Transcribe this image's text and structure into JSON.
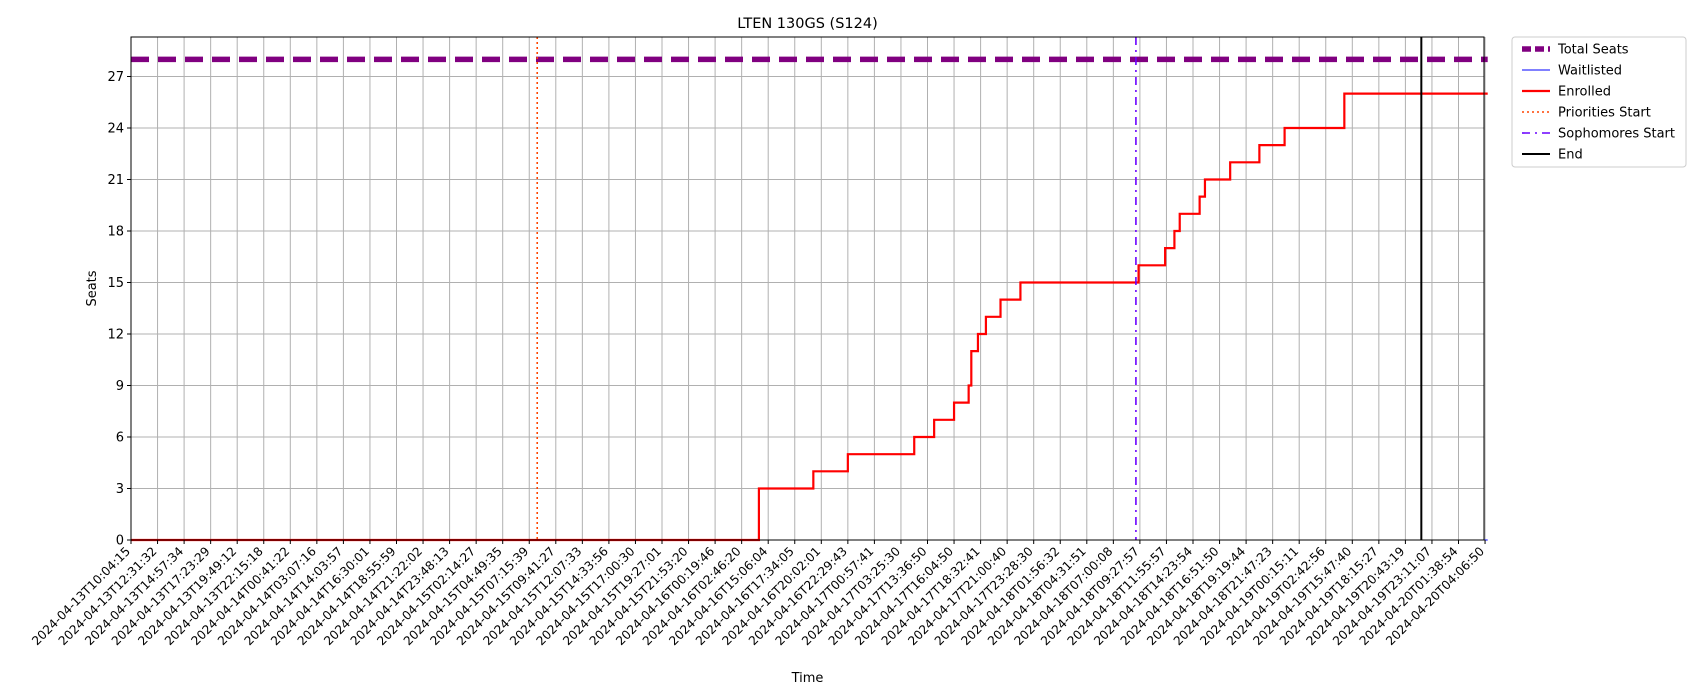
{
  "chart_data": {
    "type": "line",
    "title": "LTEN 130GS (S124)",
    "xlabel": "Time",
    "ylabel": "Seats",
    "x_ticks": [
      "2024-04-13T10:04:15",
      "2024-04-13T12:31:32",
      "2024-04-13T14:57:34",
      "2024-04-13T17:23:29",
      "2024-04-13T19:49:12",
      "2024-04-13T22:15:18",
      "2024-04-14T00:41:22",
      "2024-04-14T03:07:16",
      "2024-04-14T14:03:57",
      "2024-04-14T16:30:01",
      "2024-04-14T18:55:59",
      "2024-04-14T21:22:02",
      "2024-04-14T23:48:13",
      "2024-04-15T02:14:27",
      "2024-04-15T04:49:35",
      "2024-04-15T07:15:39",
      "2024-04-15T09:41:27",
      "2024-04-15T12:07:33",
      "2024-04-15T14:33:56",
      "2024-04-15T17:00:30",
      "2024-04-15T19:27:01",
      "2024-04-15T21:53:20",
      "2024-04-16T00:19:46",
      "2024-04-16T02:46:20",
      "2024-04-16T15:06:04",
      "2024-04-16T17:34:05",
      "2024-04-16T20:02:01",
      "2024-04-16T22:29:43",
      "2024-04-17T00:57:41",
      "2024-04-17T03:25:30",
      "2024-04-17T13:36:50",
      "2024-04-17T16:04:50",
      "2024-04-17T18:32:41",
      "2024-04-17T21:00:40",
      "2024-04-17T23:28:30",
      "2024-04-18T01:56:32",
      "2024-04-18T04:31:51",
      "2024-04-18T07:00:08",
      "2024-04-18T09:27:57",
      "2024-04-18T11:55:57",
      "2024-04-18T14:23:54",
      "2024-04-18T16:51:50",
      "2024-04-18T19:19:44",
      "2024-04-18T21:47:23",
      "2024-04-19T00:15:11",
      "2024-04-19T02:42:56",
      "2024-04-19T15:47:40",
      "2024-04-19T18:15:27",
      "2024-04-19T20:43:19",
      "2024-04-19T23:11:07",
      "2024-04-20T01:38:54",
      "2024-04-20T04:06:50"
    ],
    "x_range_index": [
      0,
      51.1
    ],
    "ylim": [
      0,
      29.3
    ],
    "y_ticks": [
      0,
      3,
      6,
      9,
      12,
      15,
      18,
      21,
      24,
      27
    ],
    "grid": true,
    "legend_position": "outside-right",
    "series": [
      {
        "name": "Total Seats",
        "style": "dashed-thick",
        "color": "#800080",
        "x_index": [
          0,
          51.1
        ],
        "values": [
          28,
          28
        ]
      },
      {
        "name": "Waitlisted",
        "style": "solid-thin",
        "color": "#0000ff",
        "x_index": [
          0,
          51.1
        ],
        "values": [
          0,
          0
        ]
      },
      {
        "name": "Enrolled",
        "style": "step",
        "color": "#ff0000",
        "steps": [
          {
            "x_index": 0,
            "value": 0
          },
          {
            "x_index": 23.65,
            "value": 3
          },
          {
            "x_index": 25.7,
            "value": 4
          },
          {
            "x_index": 27,
            "value": 5
          },
          {
            "x_index": 29.5,
            "value": 6
          },
          {
            "x_index": 30.25,
            "value": 7
          },
          {
            "x_index": 31,
            "value": 8
          },
          {
            "x_index": 31.55,
            "value": 9
          },
          {
            "x_index": 31.65,
            "value": 11
          },
          {
            "x_index": 31.9,
            "value": 12
          },
          {
            "x_index": 32.2,
            "value": 13
          },
          {
            "x_index": 32.75,
            "value": 14
          },
          {
            "x_index": 33.5,
            "value": 15
          },
          {
            "x_index": 37.95,
            "value": 16
          },
          {
            "x_index": 38.95,
            "value": 17
          },
          {
            "x_index": 39.3,
            "value": 18
          },
          {
            "x_index": 39.5,
            "value": 19
          },
          {
            "x_index": 40.25,
            "value": 20
          },
          {
            "x_index": 40.45,
            "value": 21
          },
          {
            "x_index": 41.4,
            "value": 22
          },
          {
            "x_index": 42.5,
            "value": 23
          },
          {
            "x_index": 43.45,
            "value": 24
          },
          {
            "x_index": 45.7,
            "value": 26
          },
          {
            "x_index": 51.1,
            "value": 26
          }
        ]
      }
    ],
    "markers": [
      {
        "name": "Priorities Start",
        "style": "dotted",
        "color": "#ff4500",
        "x_index": 15.3
      },
      {
        "name": "Sophomores Start",
        "style": "dashdot",
        "color": "#6a00ff",
        "x_index": 37.85
      },
      {
        "name": "End",
        "style": "solid",
        "color": "#000000",
        "x_index": 48.6
      }
    ],
    "legend": [
      "Total Seats",
      "Waitlisted",
      "Enrolled",
      "Priorities Start",
      "Sophomores Start",
      "End"
    ]
  }
}
